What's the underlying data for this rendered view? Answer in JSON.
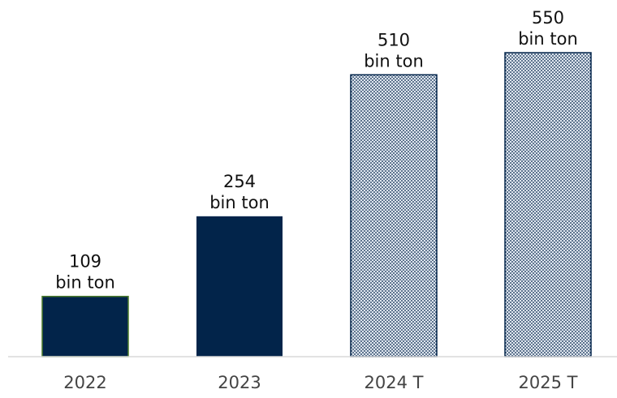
{
  "chart_data": {
    "type": "bar",
    "categories": [
      "2022",
      "2023",
      "2024 T",
      "2025 T"
    ],
    "values": [
      109,
      254,
      510,
      550
    ],
    "value_labels": [
      [
        "109",
        "bin ton"
      ],
      [
        "254",
        "bin ton"
      ],
      [
        "510",
        "bin ton"
      ],
      [
        "550",
        "bin ton"
      ]
    ],
    "bar_styles": [
      "solid",
      "solid",
      "dotted",
      "dotted"
    ],
    "ylim": [
      0,
      550
    ],
    "title": "",
    "xlabel": "",
    "ylabel": "",
    "grid": false,
    "legend": "none"
  },
  "colors": {
    "solid_fill": "#02244a",
    "dotted_bg": "#dfe6ef",
    "dotted_dot": "#02244a",
    "bar_edge_first": "#4a7a2a",
    "baseline": "#d9d9d9"
  }
}
